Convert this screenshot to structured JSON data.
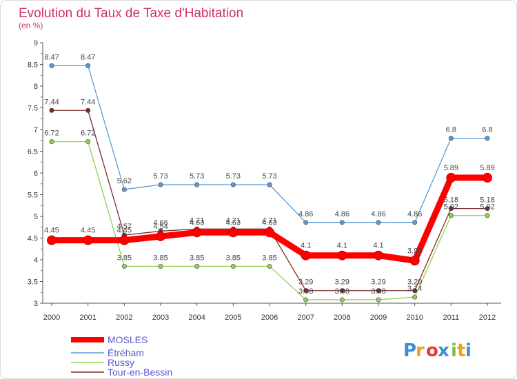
{
  "chart_data": {
    "type": "line",
    "title": "Evolution du Taux de Taxe d'Habitation",
    "subtitle": "(en %)",
    "x": [
      "2000",
      "2001",
      "2002",
      "2003",
      "2004",
      "2005",
      "2006",
      "2007",
      "2008",
      "2009",
      "2010",
      "2011",
      "2012"
    ],
    "ylim": [
      3,
      9
    ],
    "yticks": [
      "3",
      "3.5",
      "4",
      "4.5",
      "5",
      "5.5",
      "6",
      "6.5",
      "7",
      "7.5",
      "8",
      "8.5",
      "9"
    ],
    "grid": false,
    "legend_position": "bottom-left",
    "series": [
      {
        "name": "MOSLES",
        "color": "#ff0000",
        "values": [
          4.45,
          4.45,
          4.45,
          4.54,
          4.63,
          4.63,
          4.63,
          4.1,
          4.1,
          4.1,
          3.98,
          5.89,
          5.89
        ],
        "labels": [
          "4.45",
          "4.45",
          "4.45",
          "4.54",
          "4.63",
          "4.63",
          "4.63",
          "4.1",
          "4.1",
          "4.1",
          "3.98",
          "5.89",
          "5.89"
        ]
      },
      {
        "name": "Étréham",
        "color": "#5b9bd5",
        "values": [
          8.47,
          8.47,
          5.62,
          5.73,
          5.73,
          5.73,
          5.73,
          4.86,
          4.86,
          4.86,
          4.86,
          6.8,
          6.8
        ],
        "labels": [
          "8.47",
          "8.47",
          "5.62",
          "5.73",
          "5.73",
          "5.73",
          "5.73",
          "4.86",
          "4.86",
          "4.86",
          "4.86",
          "6.8",
          "6.8"
        ]
      },
      {
        "name": "Russy",
        "color": "#92d050",
        "values": [
          6.72,
          6.72,
          3.85,
          3.85,
          3.85,
          3.85,
          3.85,
          3.08,
          3.08,
          3.08,
          3.14,
          5.02,
          5.02
        ],
        "labels": [
          "6.72",
          "6.72",
          "3.85",
          "3.85",
          "3.85",
          "3.85",
          "3.85",
          "3.08",
          "3.08",
          "3.08",
          "3.14",
          "5.02",
          "5.02"
        ]
      },
      {
        "name": "Tour-en-Bessin",
        "color": "#7b2a2a",
        "values": [
          7.44,
          7.44,
          4.57,
          4.66,
          4.71,
          4.71,
          4.71,
          3.29,
          3.29,
          3.29,
          3.29,
          5.18,
          5.18
        ],
        "labels": [
          "7.44",
          "7.44",
          "4.57",
          "4.66",
          "4.71",
          "4.71",
          "4.71",
          "3.29",
          "3.29",
          "3.29",
          "3.29",
          "5.18",
          "5.18"
        ]
      }
    ]
  },
  "logo": {
    "text": "Proxiti",
    "letters": [
      "P",
      "r",
      "o",
      "x",
      "i",
      "t",
      "i"
    ],
    "colors": [
      "#3a8fd6",
      "#f0a020",
      "#e23b3b",
      "#3a8fd6",
      "#7ac142",
      "#f0a020",
      "#3a8fd6"
    ]
  }
}
